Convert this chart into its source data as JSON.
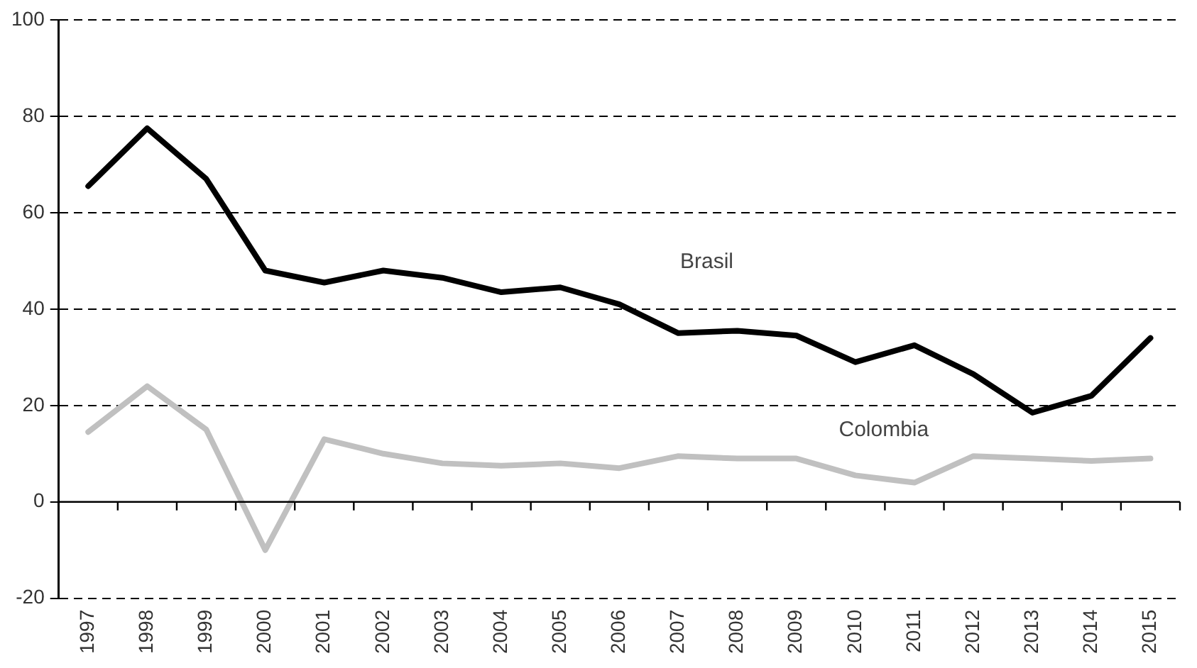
{
  "chart_data": {
    "type": "line",
    "categories": [
      "1997",
      "1998",
      "1999",
      "2000",
      "2001",
      "2002",
      "2003",
      "2004",
      "2005",
      "2006",
      "2007",
      "2008",
      "2009",
      "2010",
      "2011",
      "2012",
      "2013",
      "2014",
      "2015"
    ],
    "series": [
      {
        "name": "Brasil",
        "color": "#000000",
        "values": [
          65.5,
          77.5,
          67,
          48,
          45.5,
          48,
          46.5,
          43.5,
          44.5,
          41,
          35,
          35.5,
          34.5,
          29,
          32.5,
          26.5,
          18.5,
          22,
          34
        ]
      },
      {
        "name": "Colombia",
        "color": "#c0c0c0",
        "values": [
          14.5,
          24,
          15,
          -10,
          13,
          10,
          8,
          7.5,
          8,
          7,
          9.5,
          9,
          9,
          5.5,
          4,
          9.5,
          9,
          8.5,
          9
        ]
      }
    ],
    "ylim": [
      -20,
      100
    ],
    "yticks": [
      -20,
      0,
      20,
      40,
      60,
      80,
      100
    ],
    "grid": "y",
    "legend": false,
    "marker": "none",
    "line_style": "solid"
  }
}
